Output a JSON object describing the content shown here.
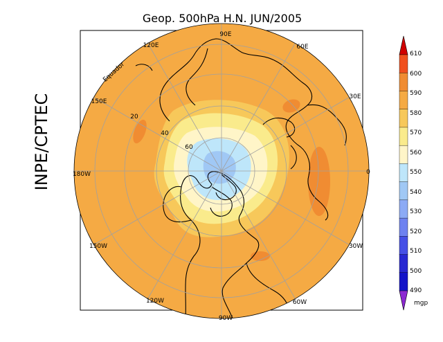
{
  "title": "Geop. 500hPa H.N. JUN/2005",
  "institution": "INPE/CPTEC",
  "map": {
    "projection": "north polar stereographic",
    "equator_label": "Equador",
    "longitude_labels": [
      "90E",
      "60E",
      "30E",
      "0",
      "30W",
      "60W",
      "90W",
      "120W",
      "150W",
      "180W",
      "150E",
      "120E"
    ],
    "latitude_labels": [
      "20",
      "40",
      "60"
    ]
  },
  "colorbar": {
    "unit": "mgp",
    "levels": [
      "610",
      "600",
      "590",
      "580",
      "570",
      "560",
      "550",
      "540",
      "530",
      "520",
      "510",
      "500",
      "490"
    ],
    "colors": [
      "#d00000",
      "#f0501e",
      "#f08c32",
      "#f5aa44",
      "#f7c85a",
      "#faeb8c",
      "#fff5c8",
      "#bee6fa",
      "#a0c8f5",
      "#8caaf5",
      "#6e82f0",
      "#4650e6",
      "#2828d2",
      "#1414c8",
      "#8c28d2"
    ]
  }
}
